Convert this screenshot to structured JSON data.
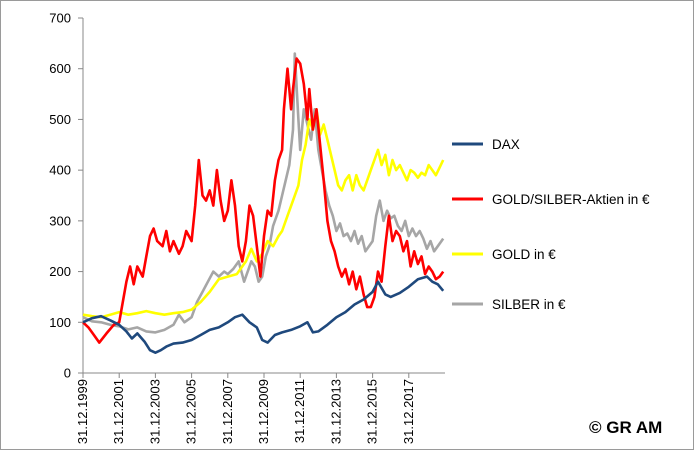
{
  "chart_data": {
    "type": "line",
    "ylim": [
      0,
      700
    ],
    "y_ticks": [
      0,
      100,
      200,
      300,
      400,
      500,
      600,
      700
    ],
    "x_ticks": [
      "31.12.1999",
      "31.12.2001",
      "31.12.2003",
      "31.12.2005",
      "31.12.2007",
      "31.12.2009",
      "31.12.2011",
      "31.12.2013",
      "31.12.2015",
      "31.12.2017"
    ],
    "xlim": [
      1999.0,
      2019.0
    ],
    "grid": false,
    "legend_position": "right",
    "series": [
      {
        "name": "DAX",
        "color": "#1f497d",
        "points": [
          [
            1999.0,
            100
          ],
          [
            1999.5,
            108
          ],
          [
            2000.0,
            112
          ],
          [
            2000.5,
            104
          ],
          [
            2001.0,
            95
          ],
          [
            2001.4,
            82
          ],
          [
            2001.7,
            68
          ],
          [
            2002.0,
            78
          ],
          [
            2002.4,
            62
          ],
          [
            2002.7,
            45
          ],
          [
            2003.0,
            40
          ],
          [
            2003.3,
            45
          ],
          [
            2003.6,
            52
          ],
          [
            2004.0,
            58
          ],
          [
            2004.5,
            60
          ],
          [
            2005.0,
            65
          ],
          [
            2005.5,
            75
          ],
          [
            2006.0,
            85
          ],
          [
            2006.5,
            90
          ],
          [
            2007.0,
            100
          ],
          [
            2007.4,
            110
          ],
          [
            2007.8,
            115
          ],
          [
            2008.2,
            100
          ],
          [
            2008.6,
            90
          ],
          [
            2008.9,
            65
          ],
          [
            2009.2,
            60
          ],
          [
            2009.6,
            75
          ],
          [
            2010.0,
            80
          ],
          [
            2010.5,
            85
          ],
          [
            2011.0,
            92
          ],
          [
            2011.4,
            100
          ],
          [
            2011.7,
            80
          ],
          [
            2012.0,
            82
          ],
          [
            2012.5,
            95
          ],
          [
            2013.0,
            110
          ],
          [
            2013.5,
            120
          ],
          [
            2014.0,
            135
          ],
          [
            2014.5,
            145
          ],
          [
            2015.0,
            160
          ],
          [
            2015.3,
            180
          ],
          [
            2015.7,
            155
          ],
          [
            2016.0,
            150
          ],
          [
            2016.5,
            158
          ],
          [
            2017.0,
            170
          ],
          [
            2017.5,
            185
          ],
          [
            2018.0,
            190
          ],
          [
            2018.3,
            180
          ],
          [
            2018.6,
            175
          ],
          [
            2018.9,
            162
          ]
        ]
      },
      {
        "name": "GOLD/SILBER-Aktien in €",
        "color": "#ff0000",
        "points": [
          [
            1999.0,
            100
          ],
          [
            1999.3,
            90
          ],
          [
            1999.6,
            75
          ],
          [
            1999.9,
            60
          ],
          [
            2000.3,
            78
          ],
          [
            2000.7,
            95
          ],
          [
            2001.0,
            100
          ],
          [
            2001.2,
            140
          ],
          [
            2001.4,
            180
          ],
          [
            2001.6,
            210
          ],
          [
            2001.8,
            175
          ],
          [
            2002.0,
            210
          ],
          [
            2002.3,
            190
          ],
          [
            2002.5,
            230
          ],
          [
            2002.7,
            270
          ],
          [
            2002.9,
            285
          ],
          [
            2003.1,
            260
          ],
          [
            2003.4,
            250
          ],
          [
            2003.6,
            280
          ],
          [
            2003.8,
            240
          ],
          [
            2004.0,
            260
          ],
          [
            2004.3,
            235
          ],
          [
            2004.5,
            250
          ],
          [
            2004.7,
            280
          ],
          [
            2005.0,
            260
          ],
          [
            2005.2,
            330
          ],
          [
            2005.4,
            420
          ],
          [
            2005.6,
            350
          ],
          [
            2005.8,
            340
          ],
          [
            2006.0,
            360
          ],
          [
            2006.2,
            330
          ],
          [
            2006.4,
            400
          ],
          [
            2006.6,
            340
          ],
          [
            2006.8,
            300
          ],
          [
            2007.0,
            320
          ],
          [
            2007.2,
            380
          ],
          [
            2007.4,
            330
          ],
          [
            2007.6,
            250
          ],
          [
            2007.8,
            220
          ],
          [
            2008.0,
            260
          ],
          [
            2008.2,
            330
          ],
          [
            2008.4,
            310
          ],
          [
            2008.6,
            250
          ],
          [
            2008.8,
            190
          ],
          [
            2009.0,
            270
          ],
          [
            2009.2,
            320
          ],
          [
            2009.4,
            310
          ],
          [
            2009.6,
            380
          ],
          [
            2009.8,
            420
          ],
          [
            2010.0,
            440
          ],
          [
            2010.1,
            520
          ],
          [
            2010.3,
            600
          ],
          [
            2010.5,
            520
          ],
          [
            2010.6,
            560
          ],
          [
            2010.8,
            620
          ],
          [
            2011.0,
            610
          ],
          [
            2011.2,
            570
          ],
          [
            2011.4,
            500
          ],
          [
            2011.5,
            560
          ],
          [
            2011.7,
            480
          ],
          [
            2011.9,
            520
          ],
          [
            2012.1,
            450
          ],
          [
            2012.3,
            380
          ],
          [
            2012.5,
            300
          ],
          [
            2012.7,
            260
          ],
          [
            2012.9,
            240
          ],
          [
            2013.1,
            210
          ],
          [
            2013.3,
            190
          ],
          [
            2013.5,
            205
          ],
          [
            2013.7,
            175
          ],
          [
            2013.9,
            200
          ],
          [
            2014.1,
            165
          ],
          [
            2014.3,
            190
          ],
          [
            2014.5,
            155
          ],
          [
            2014.7,
            130
          ],
          [
            2014.9,
            130
          ],
          [
            2015.1,
            150
          ],
          [
            2015.3,
            200
          ],
          [
            2015.5,
            180
          ],
          [
            2015.7,
            250
          ],
          [
            2015.9,
            310
          ],
          [
            2016.1,
            260
          ],
          [
            2016.3,
            280
          ],
          [
            2016.5,
            270
          ],
          [
            2016.7,
            240
          ],
          [
            2016.9,
            260
          ],
          [
            2017.1,
            210
          ],
          [
            2017.3,
            240
          ],
          [
            2017.5,
            215
          ],
          [
            2017.7,
            230
          ],
          [
            2017.9,
            195
          ],
          [
            2018.1,
            210
          ],
          [
            2018.3,
            200
          ],
          [
            2018.5,
            185
          ],
          [
            2018.7,
            190
          ],
          [
            2018.9,
            200
          ]
        ]
      },
      {
        "name": "GOLD in €",
        "color": "#ffff00",
        "points": [
          [
            1999.0,
            115
          ],
          [
            1999.5,
            112
          ],
          [
            2000.0,
            110
          ],
          [
            2000.5,
            115
          ],
          [
            2001.0,
            120
          ],
          [
            2001.5,
            115
          ],
          [
            2002.0,
            118
          ],
          [
            2002.5,
            122
          ],
          [
            2003.0,
            118
          ],
          [
            2003.5,
            115
          ],
          [
            2004.0,
            118
          ],
          [
            2004.5,
            120
          ],
          [
            2005.0,
            125
          ],
          [
            2005.5,
            140
          ],
          [
            2006.0,
            160
          ],
          [
            2006.5,
            185
          ],
          [
            2007.0,
            190
          ],
          [
            2007.5,
            195
          ],
          [
            2008.0,
            220
          ],
          [
            2008.3,
            245
          ],
          [
            2008.6,
            220
          ],
          [
            2008.9,
            235
          ],
          [
            2009.2,
            260
          ],
          [
            2009.5,
            250
          ],
          [
            2009.8,
            270
          ],
          [
            2010.0,
            280
          ],
          [
            2010.3,
            310
          ],
          [
            2010.6,
            340
          ],
          [
            2010.9,
            370
          ],
          [
            2011.1,
            420
          ],
          [
            2011.3,
            450
          ],
          [
            2011.5,
            500
          ],
          [
            2011.7,
            480
          ],
          [
            2011.9,
            520
          ],
          [
            2012.1,
            470
          ],
          [
            2012.3,
            490
          ],
          [
            2012.5,
            460
          ],
          [
            2012.7,
            430
          ],
          [
            2012.9,
            400
          ],
          [
            2013.1,
            370
          ],
          [
            2013.3,
            360
          ],
          [
            2013.5,
            380
          ],
          [
            2013.7,
            390
          ],
          [
            2013.9,
            360
          ],
          [
            2014.1,
            390
          ],
          [
            2014.3,
            370
          ],
          [
            2014.5,
            360
          ],
          [
            2014.7,
            380
          ],
          [
            2014.9,
            400
          ],
          [
            2015.1,
            420
          ],
          [
            2015.3,
            440
          ],
          [
            2015.5,
            410
          ],
          [
            2015.7,
            430
          ],
          [
            2015.9,
            390
          ],
          [
            2016.1,
            420
          ],
          [
            2016.3,
            400
          ],
          [
            2016.5,
            410
          ],
          [
            2016.7,
            395
          ],
          [
            2016.9,
            380
          ],
          [
            2017.1,
            400
          ],
          [
            2017.3,
            395
          ],
          [
            2017.5,
            385
          ],
          [
            2017.7,
            395
          ],
          [
            2017.9,
            390
          ],
          [
            2018.1,
            410
          ],
          [
            2018.3,
            400
          ],
          [
            2018.5,
            390
          ],
          [
            2018.7,
            405
          ],
          [
            2018.9,
            420
          ]
        ]
      },
      {
        "name": "SILBER in €",
        "color": "#a6a6a6",
        "points": [
          [
            1999.0,
            110
          ],
          [
            1999.5,
            102
          ],
          [
            2000.0,
            100
          ],
          [
            2000.5,
            95
          ],
          [
            2001.0,
            92
          ],
          [
            2001.5,
            86
          ],
          [
            2002.0,
            90
          ],
          [
            2002.5,
            82
          ],
          [
            2003.0,
            80
          ],
          [
            2003.5,
            85
          ],
          [
            2004.0,
            95
          ],
          [
            2004.3,
            115
          ],
          [
            2004.6,
            100
          ],
          [
            2005.0,
            110
          ],
          [
            2005.3,
            140
          ],
          [
            2005.6,
            160
          ],
          [
            2005.9,
            180
          ],
          [
            2006.2,
            200
          ],
          [
            2006.5,
            190
          ],
          [
            2006.8,
            200
          ],
          [
            2007.0,
            195
          ],
          [
            2007.3,
            205
          ],
          [
            2007.6,
            220
          ],
          [
            2007.9,
            180
          ],
          [
            2008.1,
            200
          ],
          [
            2008.3,
            220
          ],
          [
            2008.5,
            210
          ],
          [
            2008.7,
            180
          ],
          [
            2008.9,
            190
          ],
          [
            2009.1,
            230
          ],
          [
            2009.3,
            250
          ],
          [
            2009.5,
            290
          ],
          [
            2009.8,
            320
          ],
          [
            2010.0,
            350
          ],
          [
            2010.2,
            380
          ],
          [
            2010.4,
            410
          ],
          [
            2010.6,
            480
          ],
          [
            2010.7,
            630
          ],
          [
            2010.9,
            500
          ],
          [
            2011.0,
            440
          ],
          [
            2011.2,
            520
          ],
          [
            2011.4,
            490
          ],
          [
            2011.6,
            460
          ],
          [
            2011.8,
            520
          ],
          [
            2012.0,
            440
          ],
          [
            2012.2,
            400
          ],
          [
            2012.4,
            360
          ],
          [
            2012.6,
            330
          ],
          [
            2012.8,
            310
          ],
          [
            2013.0,
            280
          ],
          [
            2013.2,
            295
          ],
          [
            2013.4,
            270
          ],
          [
            2013.6,
            275
          ],
          [
            2013.8,
            260
          ],
          [
            2014.0,
            280
          ],
          [
            2014.2,
            255
          ],
          [
            2014.4,
            270
          ],
          [
            2014.6,
            240
          ],
          [
            2014.8,
            250
          ],
          [
            2015.0,
            260
          ],
          [
            2015.2,
            310
          ],
          [
            2015.4,
            340
          ],
          [
            2015.6,
            300
          ],
          [
            2015.8,
            320
          ],
          [
            2016.0,
            305
          ],
          [
            2016.2,
            310
          ],
          [
            2016.4,
            290
          ],
          [
            2016.6,
            280
          ],
          [
            2016.8,
            300
          ],
          [
            2017.0,
            270
          ],
          [
            2017.2,
            285
          ],
          [
            2017.4,
            270
          ],
          [
            2017.6,
            280
          ],
          [
            2017.8,
            265
          ],
          [
            2018.0,
            245
          ],
          [
            2018.2,
            260
          ],
          [
            2018.4,
            240
          ],
          [
            2018.6,
            250
          ],
          [
            2018.9,
            265
          ]
        ]
      }
    ]
  },
  "copyright": "© GR AM"
}
